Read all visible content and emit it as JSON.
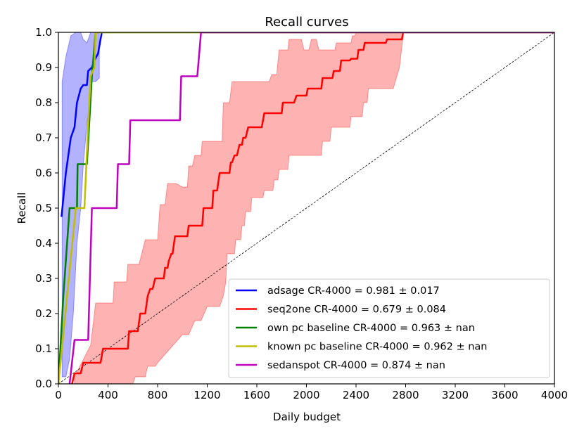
{
  "chart_data": {
    "type": "line",
    "title": "Recall curves",
    "xlabel": "Daily budget",
    "ylabel": "Recall",
    "xlim": [
      0,
      4000
    ],
    "ylim": [
      0,
      1.0
    ],
    "xticks": [
      0,
      400,
      800,
      1200,
      1600,
      2000,
      2400,
      2800,
      3200,
      3600,
      4000
    ],
    "xtick_labels": [
      "0",
      "400",
      "800",
      "1200",
      "1600",
      "2000",
      "2400",
      "2800",
      "3200",
      "3600",
      "4000"
    ],
    "yticks": [
      0.0,
      0.1,
      0.2,
      0.3,
      0.4,
      0.5,
      0.6,
      0.7,
      0.8,
      0.9,
      1.0
    ],
    "ytick_labels": [
      "0.0",
      "0.1",
      "0.2",
      "0.3",
      "0.4",
      "0.5",
      "0.6",
      "0.7",
      "0.8",
      "0.9",
      "1.0"
    ],
    "legend_position": "bottom-right",
    "diagonal": {
      "x": [
        0,
        4000
      ],
      "y": [
        0,
        1.0
      ],
      "color": "#000000",
      "style": "dashed"
    },
    "bands": [
      {
        "name": "adsage band",
        "color": "#0000ff",
        "upper": [
          [
            30,
            0.86
          ],
          [
            60,
            0.93
          ],
          [
            100,
            0.99
          ],
          [
            140,
            1.0
          ],
          [
            180,
            1.0
          ],
          [
            200,
            0.98
          ],
          [
            230,
            0.97
          ],
          [
            260,
            1.0
          ],
          [
            300,
            1.0
          ],
          [
            330,
            1.0
          ]
        ],
        "lower": [
          [
            330,
            0.87
          ],
          [
            300,
            0.86
          ],
          [
            270,
            0.86
          ],
          [
            250,
            0.79
          ],
          [
            230,
            0.74
          ],
          [
            200,
            0.62
          ],
          [
            180,
            0.5
          ],
          [
            150,
            0.4
          ],
          [
            120,
            0.2
          ],
          [
            90,
            0.07
          ],
          [
            60,
            0.02
          ],
          [
            30,
            0.02
          ]
        ]
      },
      {
        "name": "seq2one band",
        "color": "#ff0000",
        "upper": [
          [
            130,
            0.02
          ],
          [
            260,
            0.11
          ],
          [
            300,
            0.23
          ],
          [
            440,
            0.23
          ],
          [
            450,
            0.29
          ],
          [
            550,
            0.29
          ],
          [
            560,
            0.34
          ],
          [
            650,
            0.34
          ],
          [
            700,
            0.41
          ],
          [
            800,
            0.41
          ],
          [
            820,
            0.51
          ],
          [
            860,
            0.51
          ],
          [
            880,
            0.57
          ],
          [
            950,
            0.57
          ],
          [
            1000,
            0.56
          ],
          [
            1040,
            0.56
          ],
          [
            1050,
            0.62
          ],
          [
            1080,
            0.62
          ],
          [
            1100,
            0.65
          ],
          [
            1150,
            0.65
          ],
          [
            1160,
            0.69
          ],
          [
            1320,
            0.69
          ],
          [
            1330,
            0.8
          ],
          [
            1380,
            0.8
          ],
          [
            1400,
            0.86
          ],
          [
            1700,
            0.86
          ],
          [
            1720,
            0.88
          ],
          [
            1760,
            0.88
          ],
          [
            1780,
            0.95
          ],
          [
            1850,
            0.95
          ],
          [
            1860,
            0.98
          ],
          [
            1960,
            0.98
          ],
          [
            1980,
            0.95
          ],
          [
            2020,
            0.95
          ],
          [
            2040,
            0.98
          ],
          [
            2080,
            0.98
          ],
          [
            2100,
            0.95
          ],
          [
            2230,
            0.95
          ],
          [
            2240,
            0.97
          ],
          [
            2360,
            0.97
          ],
          [
            2370,
            0.99
          ],
          [
            2390,
            0.99
          ],
          [
            2400,
            1.0
          ],
          [
            2780,
            1.0
          ]
        ],
        "lower": [
          [
            2780,
            0.99
          ],
          [
            2750,
            0.9
          ],
          [
            2700,
            0.84
          ],
          [
            2500,
            0.84
          ],
          [
            2490,
            0.8
          ],
          [
            2460,
            0.8
          ],
          [
            2450,
            0.76
          ],
          [
            2360,
            0.76
          ],
          [
            2350,
            0.73
          ],
          [
            2200,
            0.73
          ],
          [
            2190,
            0.69
          ],
          [
            2130,
            0.69
          ],
          [
            2120,
            0.65
          ],
          [
            1860,
            0.65
          ],
          [
            1850,
            0.61
          ],
          [
            1780,
            0.61
          ],
          [
            1770,
            0.58
          ],
          [
            1740,
            0.58
          ],
          [
            1730,
            0.55
          ],
          [
            1660,
            0.55
          ],
          [
            1650,
            0.53
          ],
          [
            1560,
            0.53
          ],
          [
            1550,
            0.49
          ],
          [
            1510,
            0.49
          ],
          [
            1500,
            0.45
          ],
          [
            1480,
            0.45
          ],
          [
            1470,
            0.41
          ],
          [
            1430,
            0.41
          ],
          [
            1420,
            0.37
          ],
          [
            1360,
            0.37
          ],
          [
            1350,
            0.29
          ],
          [
            1330,
            0.25
          ],
          [
            1300,
            0.22
          ],
          [
            1200,
            0.22
          ],
          [
            1150,
            0.18
          ],
          [
            1100,
            0.18
          ],
          [
            1050,
            0.14
          ],
          [
            1000,
            0.14
          ],
          [
            900,
            0.1
          ],
          [
            800,
            0.06
          ],
          [
            780,
            0.05
          ],
          [
            720,
            0.05
          ],
          [
            700,
            0.02
          ],
          [
            620,
            0.02
          ],
          [
            600,
            0.0
          ],
          [
            130,
            0.0
          ]
        ]
      }
    ],
    "series": [
      {
        "name": "adsage CR-4000 = 0.981 ± 0.017",
        "color": "#0000ff",
        "points": [
          [
            25,
            0.475
          ],
          [
            60,
            0.6
          ],
          [
            100,
            0.7
          ],
          [
            130,
            0.73
          ],
          [
            150,
            0.8
          ],
          [
            180,
            0.84
          ],
          [
            200,
            0.85
          ],
          [
            230,
            0.85
          ],
          [
            240,
            0.89
          ],
          [
            270,
            0.9
          ],
          [
            290,
            0.92
          ],
          [
            320,
            0.94
          ],
          [
            335,
            0.97
          ],
          [
            350,
            1.0
          ]
        ]
      },
      {
        "name": "seq2one CR-4000 = 0.679 ± 0.084",
        "color": "#ff0000",
        "points": [
          [
            110,
            0.0
          ],
          [
            130,
            0.03
          ],
          [
            180,
            0.03
          ],
          [
            200,
            0.06
          ],
          [
            340,
            0.06
          ],
          [
            360,
            0.1
          ],
          [
            560,
            0.1
          ],
          [
            570,
            0.15
          ],
          [
            640,
            0.15
          ],
          [
            660,
            0.2
          ],
          [
            700,
            0.2
          ],
          [
            720,
            0.25
          ],
          [
            740,
            0.27
          ],
          [
            760,
            0.27
          ],
          [
            780,
            0.3
          ],
          [
            850,
            0.3
          ],
          [
            860,
            0.33
          ],
          [
            880,
            0.33
          ],
          [
            890,
            0.35
          ],
          [
            910,
            0.37
          ],
          [
            920,
            0.37
          ],
          [
            940,
            0.42
          ],
          [
            1040,
            0.42
          ],
          [
            1050,
            0.45
          ],
          [
            1160,
            0.45
          ],
          [
            1170,
            0.5
          ],
          [
            1240,
            0.5
          ],
          [
            1250,
            0.55
          ],
          [
            1280,
            0.55
          ],
          [
            1300,
            0.6
          ],
          [
            1380,
            0.6
          ],
          [
            1390,
            0.63
          ],
          [
            1400,
            0.63
          ],
          [
            1420,
            0.65
          ],
          [
            1440,
            0.65
          ],
          [
            1460,
            0.68
          ],
          [
            1480,
            0.68
          ],
          [
            1490,
            0.7
          ],
          [
            1510,
            0.7
          ],
          [
            1530,
            0.73
          ],
          [
            1640,
            0.73
          ],
          [
            1660,
            0.77
          ],
          [
            1800,
            0.77
          ],
          [
            1810,
            0.8
          ],
          [
            1900,
            0.8
          ],
          [
            1920,
            0.82
          ],
          [
            2000,
            0.82
          ],
          [
            2010,
            0.84
          ],
          [
            2120,
            0.84
          ],
          [
            2130,
            0.87
          ],
          [
            2210,
            0.87
          ],
          [
            2220,
            0.89
          ],
          [
            2270,
            0.89
          ],
          [
            2280,
            0.92
          ],
          [
            2350,
            0.92
          ],
          [
            2360,
            0.925
          ],
          [
            2410,
            0.925
          ],
          [
            2420,
            0.95
          ],
          [
            2460,
            0.95
          ],
          [
            2470,
            0.97
          ],
          [
            2640,
            0.97
          ],
          [
            2650,
            0.98
          ],
          [
            2770,
            0.98
          ],
          [
            2780,
            1.0
          ]
        ]
      },
      {
        "name": "own pc baseline CR-4000 = 0.963 ± nan",
        "color": "#008000",
        "points": [
          [
            0,
            0.0
          ],
          [
            40,
            0.25
          ],
          [
            90,
            0.5
          ],
          [
            150,
            0.5
          ],
          [
            155,
            0.625
          ],
          [
            230,
            0.625
          ],
          [
            250,
            0.75
          ],
          [
            270,
            0.875
          ],
          [
            300,
            1.0
          ],
          [
            4000,
            1.0
          ]
        ]
      },
      {
        "name": "known pc baseline CR-4000 = 0.962 ± nan",
        "color": "#bfbf00",
        "points": [
          [
            0,
            0.0
          ],
          [
            140,
            0.5
          ],
          [
            210,
            0.5
          ],
          [
            235,
            0.7
          ],
          [
            260,
            0.875
          ],
          [
            290,
            0.9
          ],
          [
            300,
            1.0
          ],
          [
            4000,
            1.0
          ]
        ]
      },
      {
        "name": "sedanspot CR-4000 = 0.874 ± nan",
        "color": "#bf00bf",
        "points": [
          [
            90,
            0.0
          ],
          [
            130,
            0.125
          ],
          [
            240,
            0.125
          ],
          [
            270,
            0.5
          ],
          [
            350,
            0.5
          ],
          [
            360,
            0.5
          ],
          [
            470,
            0.5
          ],
          [
            480,
            0.625
          ],
          [
            570,
            0.625
          ],
          [
            580,
            0.75
          ],
          [
            690,
            0.75
          ],
          [
            980,
            0.75
          ],
          [
            990,
            0.875
          ],
          [
            1120,
            0.875
          ],
          [
            1150,
            1.0
          ],
          [
            4000,
            1.0
          ]
        ]
      }
    ]
  }
}
